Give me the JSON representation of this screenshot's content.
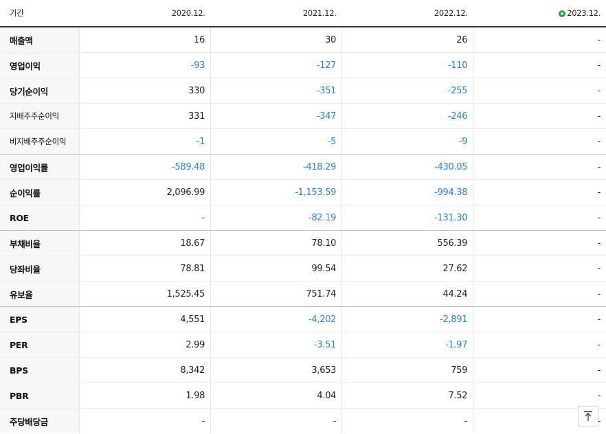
{
  "header": {
    "label": "기간",
    "periods": [
      "2020.12.",
      "2021.12.",
      "2022.12.",
      "2023.12."
    ],
    "estimate_badge": "E",
    "estimate_period_index": 3
  },
  "rows": [
    {
      "label": "매출액",
      "values": [
        "16",
        "30",
        "26",
        "-"
      ]
    },
    {
      "label": "영업이익",
      "values": [
        "-93",
        "-127",
        "-110",
        "-"
      ]
    },
    {
      "label": "당기순이익",
      "values": [
        "330",
        "-351",
        "-255",
        "-"
      ]
    },
    {
      "label": "지배주주순이익",
      "values": [
        "331",
        "-347",
        "-246",
        "-"
      ]
    },
    {
      "label": "비지배주주순이익",
      "values": [
        "-1",
        "-5",
        "-9",
        "-"
      ]
    },
    {
      "label": "영업이익률",
      "values": [
        "-589.48",
        "-418.29",
        "-430.05",
        "-"
      ]
    },
    {
      "label": "순이익률",
      "values": [
        "2,096.99",
        "-1,153.59",
        "-994.38",
        "-"
      ]
    },
    {
      "label": "ROE",
      "values": [
        "-",
        "-82.19",
        "-131.30",
        "-"
      ]
    },
    {
      "label": "부채비율",
      "values": [
        "18.67",
        "78.10",
        "556.39",
        "-"
      ]
    },
    {
      "label": "당좌비율",
      "values": [
        "78.81",
        "99.54",
        "27.62",
        "-"
      ]
    },
    {
      "label": "유보율",
      "values": [
        "1,525.45",
        "751.74",
        "44.24",
        "-"
      ]
    },
    {
      "label": "EPS",
      "values": [
        "4,551",
        "-4,202",
        "-2,891",
        "-"
      ]
    },
    {
      "label": "PER",
      "values": [
        "2.99",
        "-3.51",
        "-1.97",
        "-"
      ]
    },
    {
      "label": "BPS",
      "values": [
        "8,342",
        "3,653",
        "759",
        "-"
      ]
    },
    {
      "label": "PBR",
      "values": [
        "1.98",
        "4.04",
        "7.52",
        "-"
      ]
    },
    {
      "label": "주당배당금",
      "values": [
        "-",
        "-",
        "-",
        "-"
      ]
    }
  ],
  "colors": {
    "negative": "#2d7fd0",
    "positive": "#222222",
    "estimate": "#1fa04b"
  },
  "scroll_top_icon": "arrow-up-to-top-icon"
}
